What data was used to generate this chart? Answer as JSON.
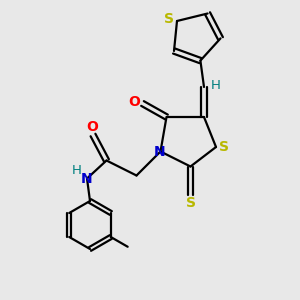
{
  "bg_color": "#e8e8e8",
  "bond_color": "#000000",
  "S_color": "#b8b800",
  "N_color": "#0000cc",
  "O_color": "#ff0000",
  "H_color": "#008080",
  "line_width": 1.6,
  "fig_w": 3.0,
  "fig_h": 3.0,
  "dpi": 100,
  "xlim": [
    0,
    10
  ],
  "ylim": [
    0,
    10
  ]
}
